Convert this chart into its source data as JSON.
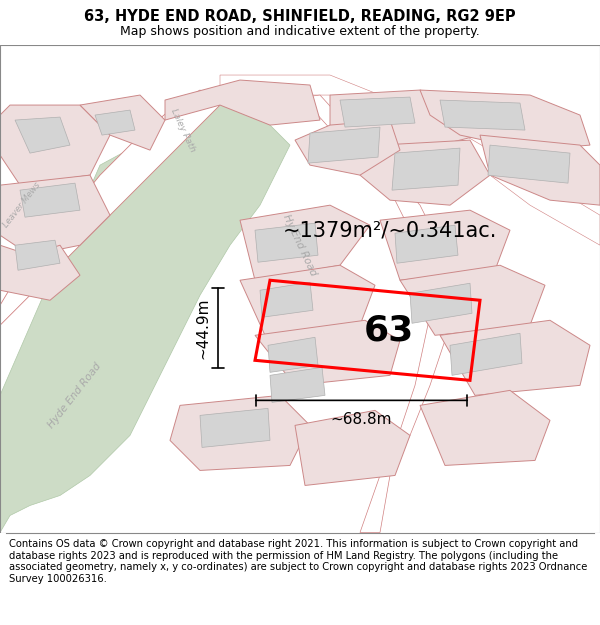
{
  "title": "63, HYDE END ROAD, SHINFIELD, READING, RG2 9EP",
  "subtitle": "Map shows position and indicative extent of the property.",
  "area_label": "~1379m²/~0.341ac.",
  "dim_width": "~68.8m",
  "dim_height": "~44.9m",
  "plot_number": "63",
  "footer": "Contains OS data © Crown copyright and database right 2021. This information is subject to Crown copyright and database rights 2023 and is reproduced with the permission of HM Land Registry. The polygons (including the associated geometry, namely x, y co-ordinates) are subject to Crown copyright and database rights 2023 Ordnance Survey 100026316.",
  "bg_color": "#f5f5f2",
  "plot_outline_color": "#ff0000",
  "green_area_color": "#cddcc6",
  "title_fontsize": 10.5,
  "subtitle_fontsize": 9,
  "annotation_fontsize": 14,
  "footer_fontsize": 7.2,
  "road_pink_fill": "#f0c8c8",
  "road_pink_edge": "#d08080",
  "plot_fill_light": "#eedede",
  "plot_edge": "#cc8888",
  "bldg_fill": "#d4d4d4",
  "bldg_edge": "#b0b0b0"
}
